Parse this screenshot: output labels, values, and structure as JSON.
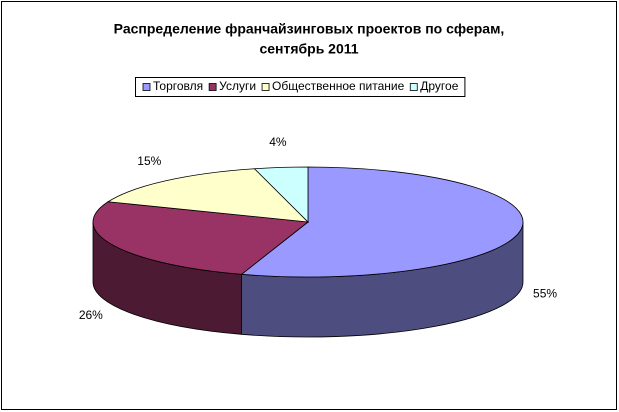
{
  "chart_data": {
    "type": "pie",
    "title": [
      "Распределение франчайзинговых проектов по сферам,",
      "сентябрь 2011"
    ],
    "categories": [
      "Торговля",
      "Услуги",
      "Общественное питание",
      "Другое"
    ],
    "values": [
      55,
      26,
      15,
      4
    ],
    "value_labels": [
      "55%",
      "26%",
      "15%",
      "4%"
    ],
    "colors": [
      "#9999FF",
      "#993366",
      "#FFFFCC",
      "#CCFFFF"
    ],
    "legend": "top"
  }
}
